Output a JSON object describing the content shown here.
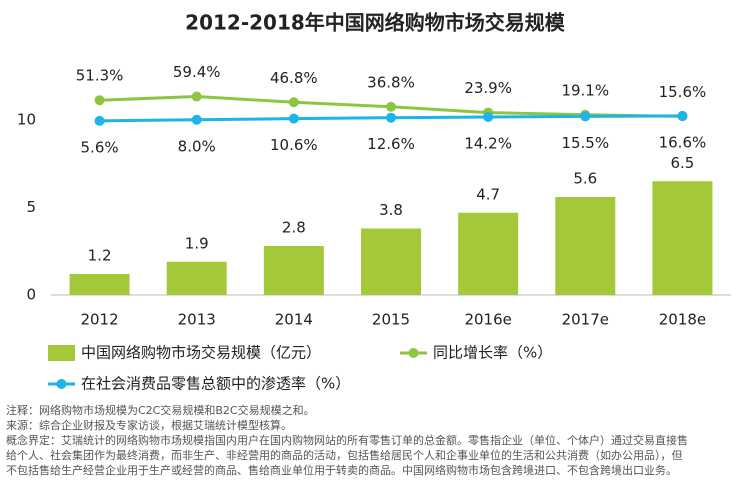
{
  "chart_data": {
    "type": "bar",
    "title": "2012-2018年中国网络购物市场交易规模",
    "categories": [
      "2012",
      "2013",
      "2014",
      "2015",
      "2016e",
      "2017e",
      "2018e"
    ],
    "ylim": [
      0,
      12
    ],
    "yticks": [
      0,
      5,
      10
    ],
    "y2lim": [
      -380,
      85
    ],
    "series": [
      {
        "name": "中国网络购物市场交易规模（亿元）",
        "type": "bar",
        "color": "#a3c83a",
        "values": [
          1.2,
          1.9,
          2.8,
          3.8,
          4.7,
          5.6,
          6.5
        ]
      },
      {
        "name": "同比增长率（%）",
        "type": "line",
        "axis": "y2",
        "color": "#8cc63e",
        "label_position": "above",
        "values": [
          51.3,
          59.4,
          46.8,
          36.8,
          23.9,
          19.1,
          15.6
        ],
        "value_labels": [
          "51.3%",
          "59.4%",
          "46.8%",
          "36.8%",
          "23.9%",
          "19.1%",
          "15.6%"
        ]
      },
      {
        "name": "在社会消费品零售总额中的渗透率（%）",
        "type": "line",
        "axis": "y2",
        "color": "#1db4e8",
        "label_position": "below",
        "values": [
          5.6,
          8.0,
          10.6,
          12.6,
          14.2,
          15.5,
          16.6
        ],
        "value_labels": [
          "5.6%",
          "8.0%",
          "10.6%",
          "12.6%",
          "14.2%",
          "15.5%",
          "16.6%"
        ]
      }
    ],
    "notes": [
      "注释：网络购物市场规模为C2C交易规模和B2C交易规模之和。",
      "来源：综合企业财报及专家访谈，根据艾瑞统计模型核算。",
      "概念界定：艾瑞统计的网络购物市场规模指国内用户在国内购物网站的所有零售订单的总金额。零售指企业（单位、个体户）通过交易直接售",
      "给个人、社会集团作为最终消费，而非生产、非经营用的商品的活动，包括售给居民个人和企事业单位的生活和公共消费（如办公用品），但",
      "不包括售给生产经营企业用于生产或经营的商品、售给商业单位用于转卖的商品。中国网络购物市场包含跨境进口、不包含跨境出口业务。"
    ]
  }
}
